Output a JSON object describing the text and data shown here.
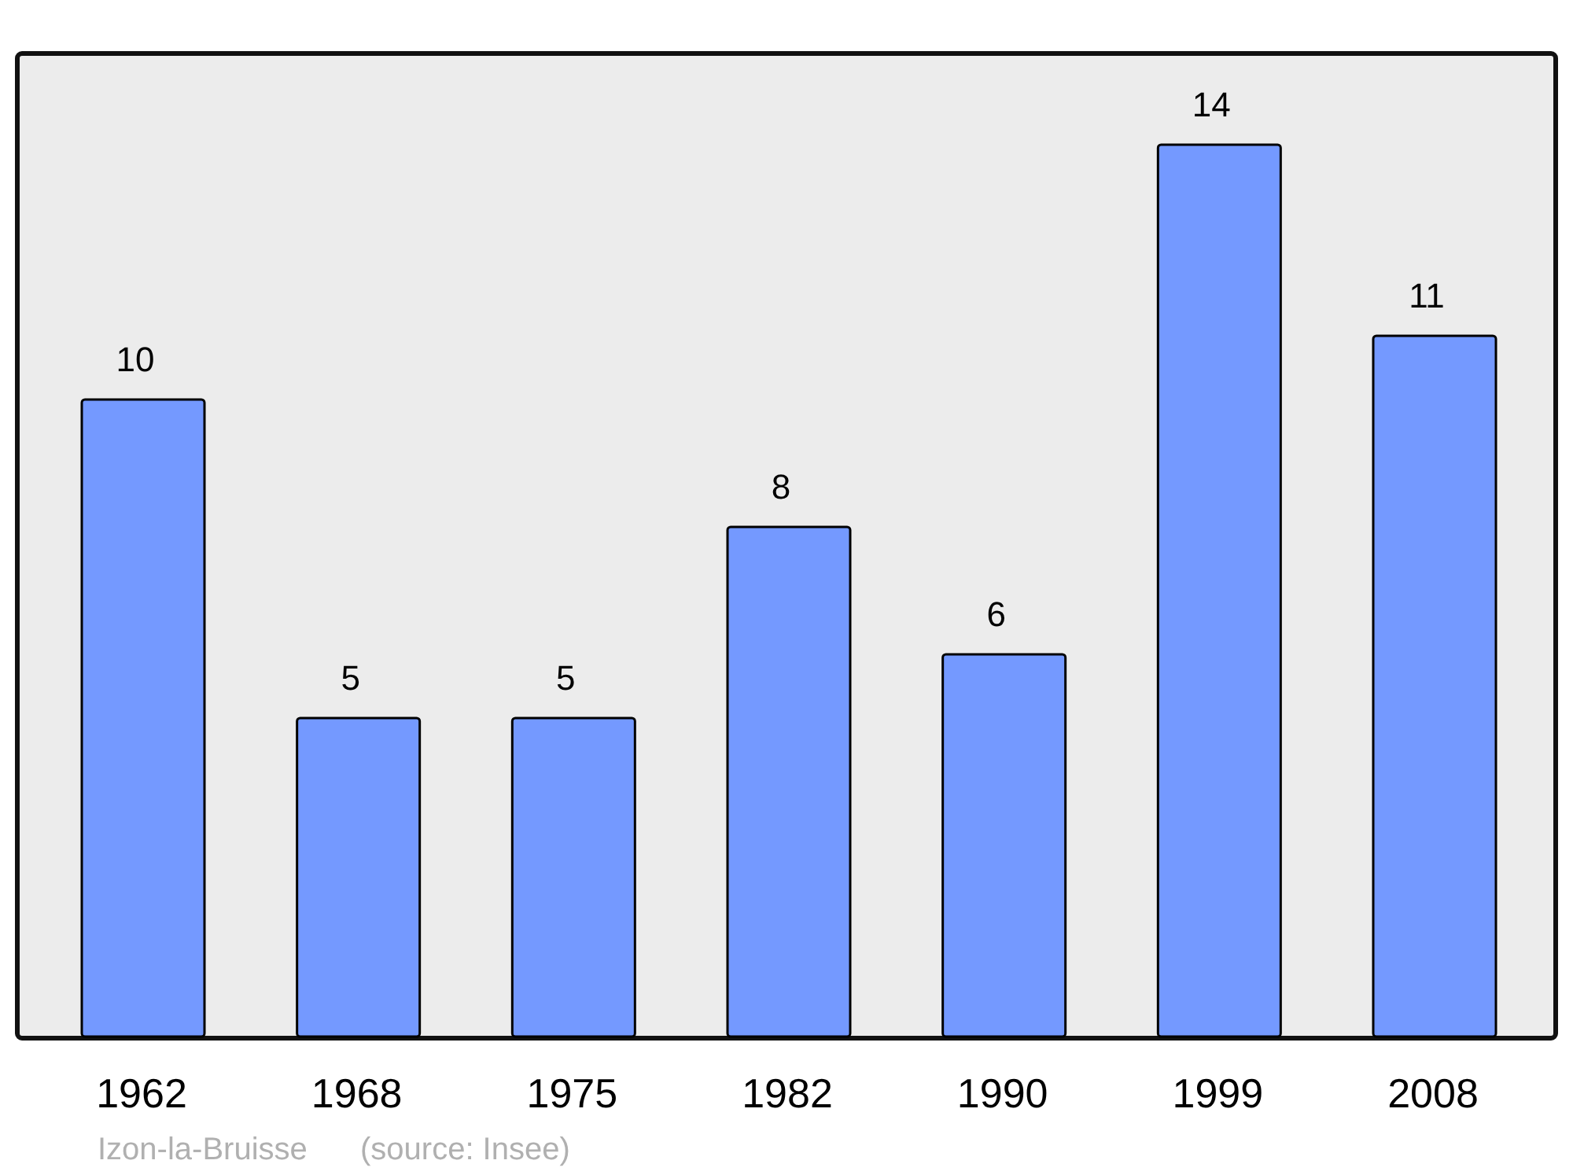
{
  "chart_data": {
    "type": "bar",
    "categories": [
      "1962",
      "1968",
      "1975",
      "1982",
      "1990",
      "1999",
      "2008"
    ],
    "values": [
      10,
      5,
      5,
      8,
      6,
      14,
      11
    ],
    "color": "#7499ff",
    "data_labels": true,
    "annotations": [
      "Izon-la-Bruisse",
      "(source: Insee)"
    ]
  }
}
